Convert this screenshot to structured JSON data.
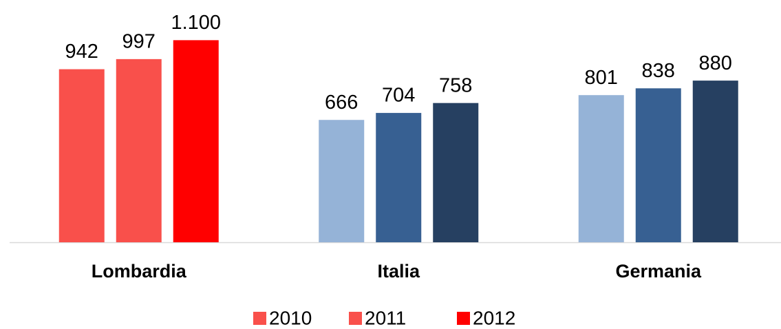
{
  "chart_data": {
    "type": "bar",
    "categories": [
      "Lombardia",
      "Italia",
      "Germania"
    ],
    "series": [
      {
        "name": "2010",
        "color": "#f9504b",
        "colors": [
          "#f9504b",
          "#95b3d7",
          "#95b3d7"
        ],
        "values": [
          942,
          666,
          801
        ]
      },
      {
        "name": "2011",
        "color": "#f9504b",
        "colors": [
          "#f9504b",
          "#376092",
          "#376092"
        ],
        "values": [
          997,
          704,
          838
        ]
      },
      {
        "name": "2012",
        "color": "#ff0000",
        "colors": [
          "#ff0000",
          "#264061",
          "#264061"
        ],
        "values": [
          1100,
          758,
          880
        ],
        "value_labels": [
          "1.100",
          "758",
          "880"
        ]
      }
    ],
    "ylim": [
      0,
      1300
    ]
  }
}
